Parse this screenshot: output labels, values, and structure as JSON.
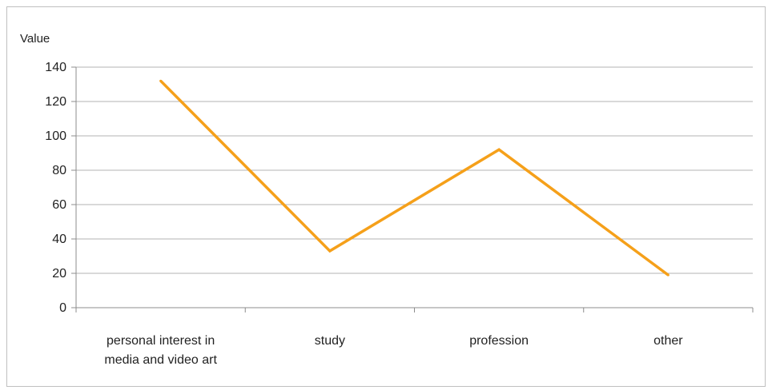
{
  "chart_data": {
    "type": "line",
    "ylabel": "Value",
    "categories": [
      [
        "personal interest in",
        "media and video art"
      ],
      [
        "study"
      ],
      [
        "profession"
      ],
      [
        "other"
      ]
    ],
    "series": [
      {
        "values": [
          132,
          33,
          92,
          19
        ],
        "color": "#f5a01a"
      }
    ],
    "ylim": [
      0,
      140
    ],
    "yticks": [
      0,
      20,
      40,
      60,
      80,
      100,
      120,
      140
    ],
    "grid": true,
    "legend": "none"
  }
}
